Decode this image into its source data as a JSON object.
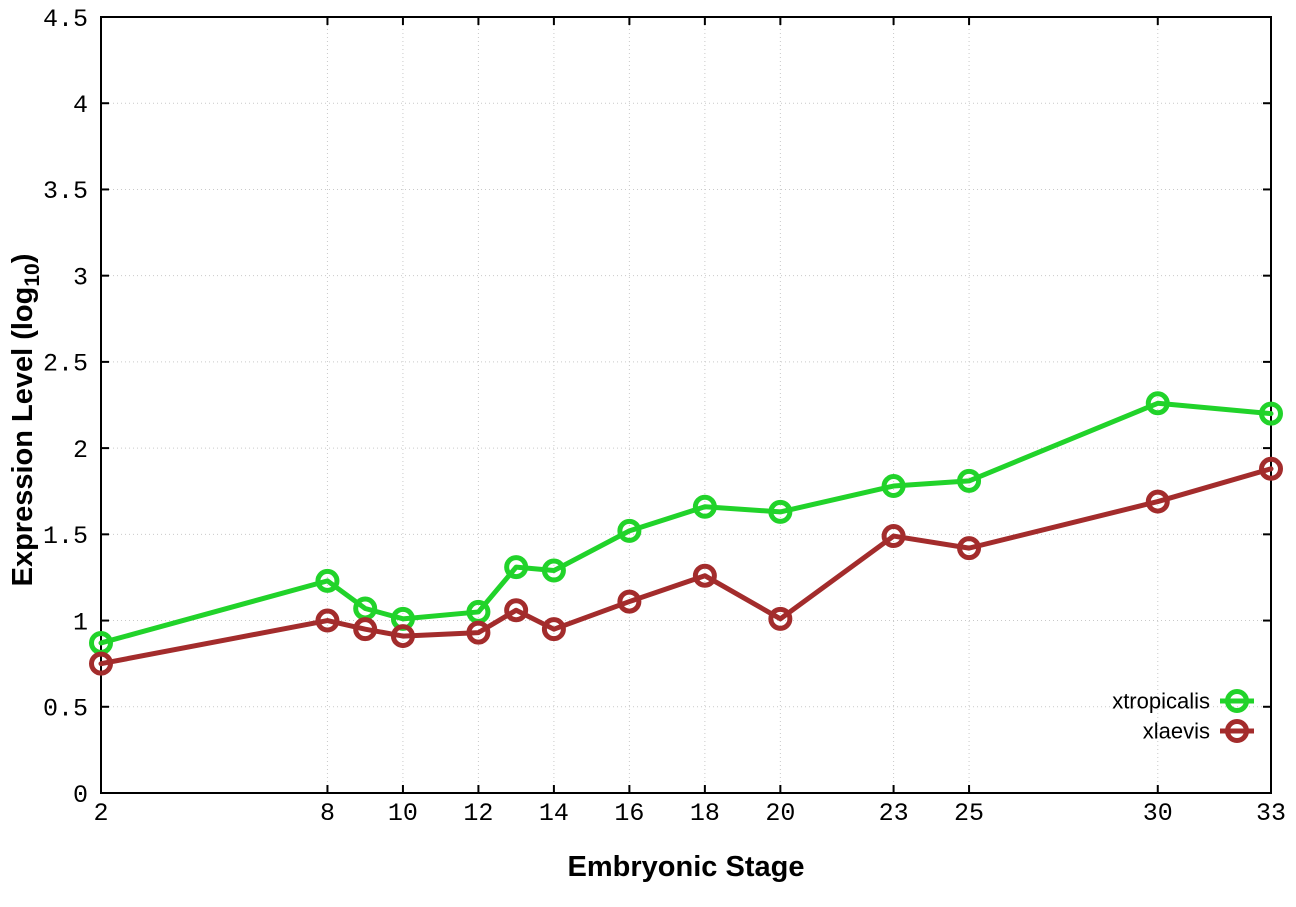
{
  "chart_data": {
    "type": "line",
    "title": "",
    "xlabel": "Embryonic Stage",
    "ylabel": "Expression Level (log10)",
    "ylabel_parts": {
      "prefix": "Expression Level (log",
      "subscript": "10",
      "suffix": ")"
    },
    "x": [
      2,
      8,
      9,
      10,
      12,
      13,
      14,
      16,
      18,
      20,
      23,
      25,
      30,
      33
    ],
    "series": [
      {
        "name": "xtropicalis",
        "color": "#21d32a",
        "values": [
          0.87,
          1.23,
          1.07,
          1.01,
          1.05,
          1.31,
          1.29,
          1.52,
          1.66,
          1.63,
          1.78,
          1.81,
          2.26,
          2.2
        ]
      },
      {
        "name": "xlaevis",
        "color": "#a32c2c",
        "values": [
          0.75,
          1.0,
          0.95,
          0.91,
          0.93,
          1.06,
          0.95,
          1.11,
          1.26,
          1.01,
          1.49,
          1.42,
          1.69,
          1.88
        ]
      }
    ],
    "xlim": [
      2,
      33
    ],
    "ylim": [
      0,
      4.5
    ],
    "x_ticks": [
      2,
      8,
      10,
      12,
      14,
      16,
      18,
      20,
      23,
      25,
      30,
      33
    ],
    "x_tick_labels": [
      "2",
      "8",
      "10",
      "12",
      "14",
      "16",
      "18",
      "20",
      "23",
      "25",
      "30",
      "33"
    ],
    "y_ticks": [
      0,
      0.5,
      1,
      1.5,
      2,
      2.5,
      3,
      3.5,
      4,
      4.5
    ],
    "y_tick_labels": [
      "0",
      "0.5",
      "1",
      "1.5",
      "2",
      "2.5",
      "3",
      "3.5",
      "4",
      "4.5"
    ],
    "grid": true,
    "grid_style": "dotted",
    "grid_color": "#c9c9c9",
    "axis_color": "#000000",
    "background": "#ffffff",
    "marker": "open-circle",
    "legend_position": "bottom-right-inside"
  }
}
